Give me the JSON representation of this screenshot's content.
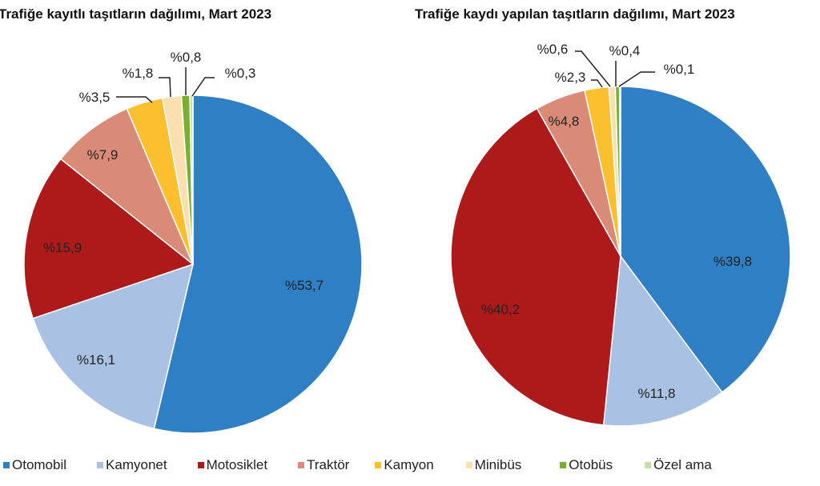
{
  "chart_data": [
    {
      "type": "pie",
      "title": "Trafiğe kayıtlı taşıtların dağılımı, Mart 2023",
      "categories": [
        "Otomobil",
        "Kamyonet",
        "Motosiklet",
        "Traktör",
        "Kamyon",
        "Minibüs",
        "Otobüs",
        "Özel ama"
      ],
      "values": [
        53.7,
        16.1,
        15.9,
        7.9,
        3.5,
        1.8,
        0.8,
        0.3
      ],
      "labels": [
        "%53,7",
        "%16,1",
        "%15,9",
        "%7,9",
        "%3,5",
        "%1,8",
        "%0,8",
        "%0,3"
      ]
    },
    {
      "type": "pie",
      "title": "Trafiğe kaydı yapılan taşıtların dağılımı, Mart 2023",
      "categories": [
        "Otomobil",
        "Kamyonet",
        "Motosiklet",
        "Traktör",
        "Kamyon",
        "Minibüs",
        "Otobüs",
        "Özel ama"
      ],
      "values": [
        39.8,
        11.8,
        40.2,
        4.8,
        2.3,
        0.6,
        0.4,
        0.1
      ],
      "labels": [
        "%39,8",
        "%11,8",
        "%40,2",
        "%4,8",
        "%2,3",
        "%0,6",
        "%0,4",
        "%0,1"
      ]
    }
  ],
  "legend": {
    "placement": "bottom",
    "items": [
      "Otomobil",
      "Kamyonet",
      "Motosiklet",
      "Traktör",
      "Kamyon",
      "Minibüs",
      "Otobüs",
      "Özel ama"
    ]
  },
  "colors": [
    "#2e7fc4",
    "#a9c1e3",
    "#ae1a1a",
    "#d98b78",
    "#fcc02e",
    "#fae0b0",
    "#7ab02f",
    "#c6dfa8"
  ]
}
